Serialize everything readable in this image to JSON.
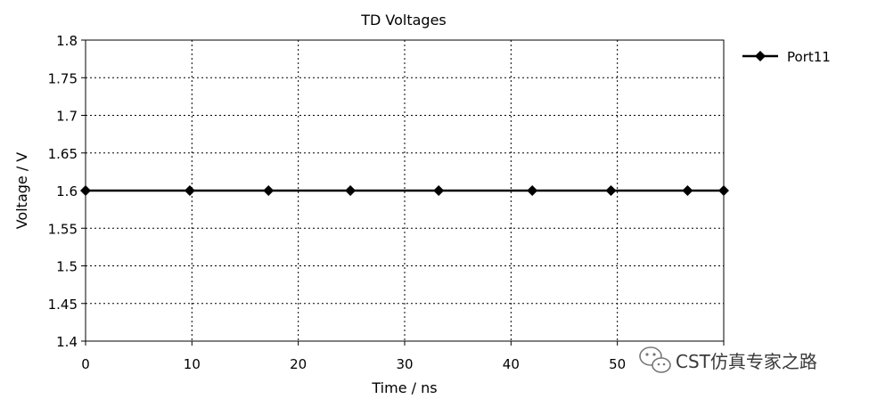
{
  "chart_data": {
    "type": "line",
    "title": "TD Voltages",
    "xlabel": "Time / ns",
    "ylabel": "Voltage / V",
    "xlim": [
      0,
      60
    ],
    "ylim": [
      1.4,
      1.8
    ],
    "xticks": [
      "0",
      "10",
      "20",
      "30",
      "40",
      "50",
      ""
    ],
    "yticks": [
      "1.4",
      "1.45",
      "1.5",
      "1.55",
      "1.6",
      "1.65",
      "1.7",
      "1.75",
      "1.8"
    ],
    "grid": true,
    "legend_position": "right",
    "series": [
      {
        "name": "Port11",
        "color": "#000000",
        "marker": "diamond",
        "x": [
          0,
          9.8,
          17.2,
          24.9,
          33.2,
          42.0,
          49.4,
          56.6,
          60.0
        ],
        "y": [
          1.6,
          1.6,
          1.6,
          1.6,
          1.6,
          1.6,
          1.6,
          1.6,
          1.6
        ]
      }
    ]
  },
  "watermark": {
    "text": "CST仿真专家之路",
    "icon": "wechat-icon"
  }
}
